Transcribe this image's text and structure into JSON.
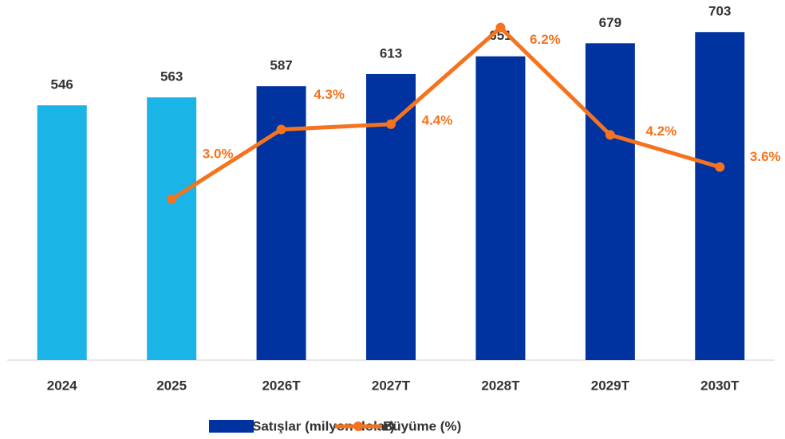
{
  "chart_data": {
    "type": "bar_line",
    "categories": [
      "2024",
      "2025",
      "2026T",
      "2027T",
      "2028T",
      "2029T",
      "2030T"
    ],
    "series": [
      {
        "name": "Satışlar (milyon dolar)",
        "type": "bar",
        "color": "#0033a0",
        "colors": [
          "#1ab4e6",
          "#1ab4e6",
          "#0033a0",
          "#0033a0",
          "#0033a0",
          "#0033a0",
          "#0033a0"
        ],
        "values": [
          546,
          563,
          587,
          613,
          651,
          679,
          703
        ]
      },
      {
        "name": "Büyüme (%)",
        "type": "line",
        "color": "#f5731e",
        "axis": "y2",
        "values": [
          null,
          3.0,
          4.3,
          4.4,
          6.2,
          4.2,
          3.6
        ],
        "value_labels": [
          null,
          "3.0%",
          "4.3%",
          "4.4%",
          "6.2%",
          "4.2%",
          "3.6%"
        ]
      }
    ],
    "ylim": [
      0,
      770
    ],
    "y2lim": [
      0,
      6.7
    ],
    "legend": "bottom"
  }
}
